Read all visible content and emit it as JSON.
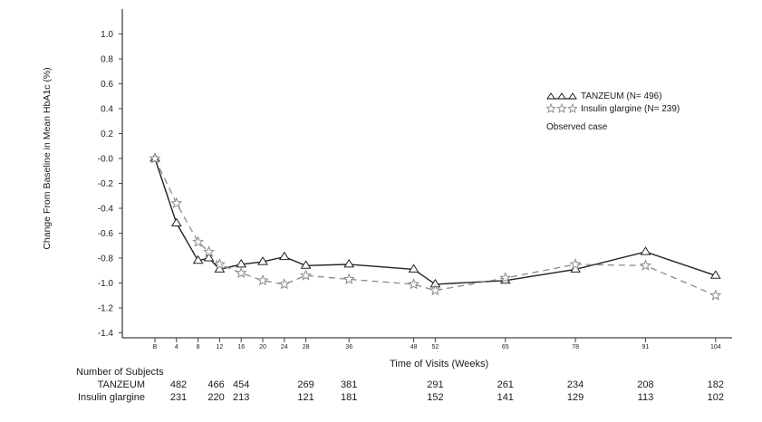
{
  "chart_data": {
    "type": "line",
    "title": "",
    "xlabel": "Time of Visits (Weeks)",
    "ylabel": "Change From Baseline in Mean HbA1c (%)",
    "ylim": [
      -1.4,
      1.0
    ],
    "yticks": [
      "1.0",
      "0.8",
      "0.6",
      "0.4",
      "0.2",
      "-0.0",
      "-0.2",
      "-0.4",
      "-0.6",
      "-0.8",
      "-1.0",
      "-1.2",
      "-1.4"
    ],
    "xticks": [
      "B",
      "4",
      "8",
      "12",
      "16",
      "20",
      "24",
      "28",
      "36",
      "48",
      "52",
      "65",
      "78",
      "91",
      "104"
    ],
    "grid": false,
    "legend_position": "upper right",
    "series": [
      {
        "name": "TANZEUM (N= 496)",
        "marker": "triangle",
        "line": "solid",
        "color": "#222222",
        "x": [
          0,
          4,
          8,
          10,
          12,
          16,
          20,
          24,
          28,
          36,
          48,
          52,
          65,
          78,
          91,
          104
        ],
        "values": [
          -0.0,
          -0.52,
          -0.82,
          -0.8,
          -0.89,
          -0.85,
          -0.83,
          -0.79,
          -0.86,
          -0.85,
          -0.89,
          -1.01,
          -0.98,
          -0.89,
          -0.75,
          -0.94
        ]
      },
      {
        "name": "Insulin glargine (N= 239)",
        "marker": "star",
        "line": "dashed",
        "color": "#8a8a8a",
        "x": [
          0,
          4,
          8,
          10,
          12,
          16,
          20,
          24,
          28,
          36,
          48,
          52,
          65,
          78,
          91,
          104
        ],
        "values": [
          -0.0,
          -0.36,
          -0.67,
          -0.75,
          -0.85,
          -0.92,
          -0.98,
          -1.01,
          -0.94,
          -0.97,
          -1.01,
          -1.06,
          -0.96,
          -0.85,
          -0.86,
          -1.1
        ]
      }
    ],
    "annotations": [
      "Observed case"
    ]
  },
  "legend": {
    "tanzeum": "TANZEUM (N= 496)",
    "insulin": "Insulin glargine (N= 239)",
    "note": "Observed case"
  },
  "axes": {
    "ylabel": "Change From Baseline in Mean HbA1c (%)",
    "xlabel": "Time of Visits (Weeks)"
  },
  "subjects": {
    "heading": "Number of Subjects",
    "weeks": [
      "B",
      "8",
      "16",
      "28",
      "36",
      "52",
      "65",
      "78",
      "91",
      "104"
    ],
    "tanzeum_label": "TANZEUM",
    "insulin_label": "Insulin glargine",
    "tanzeum": [
      "482",
      "466",
      "454",
      "269",
      "381",
      "291",
      "261",
      "234",
      "208",
      "182"
    ],
    "insulin": [
      "231",
      "220",
      "213",
      "121",
      "181",
      "152",
      "141",
      "129",
      "113",
      "102"
    ]
  }
}
